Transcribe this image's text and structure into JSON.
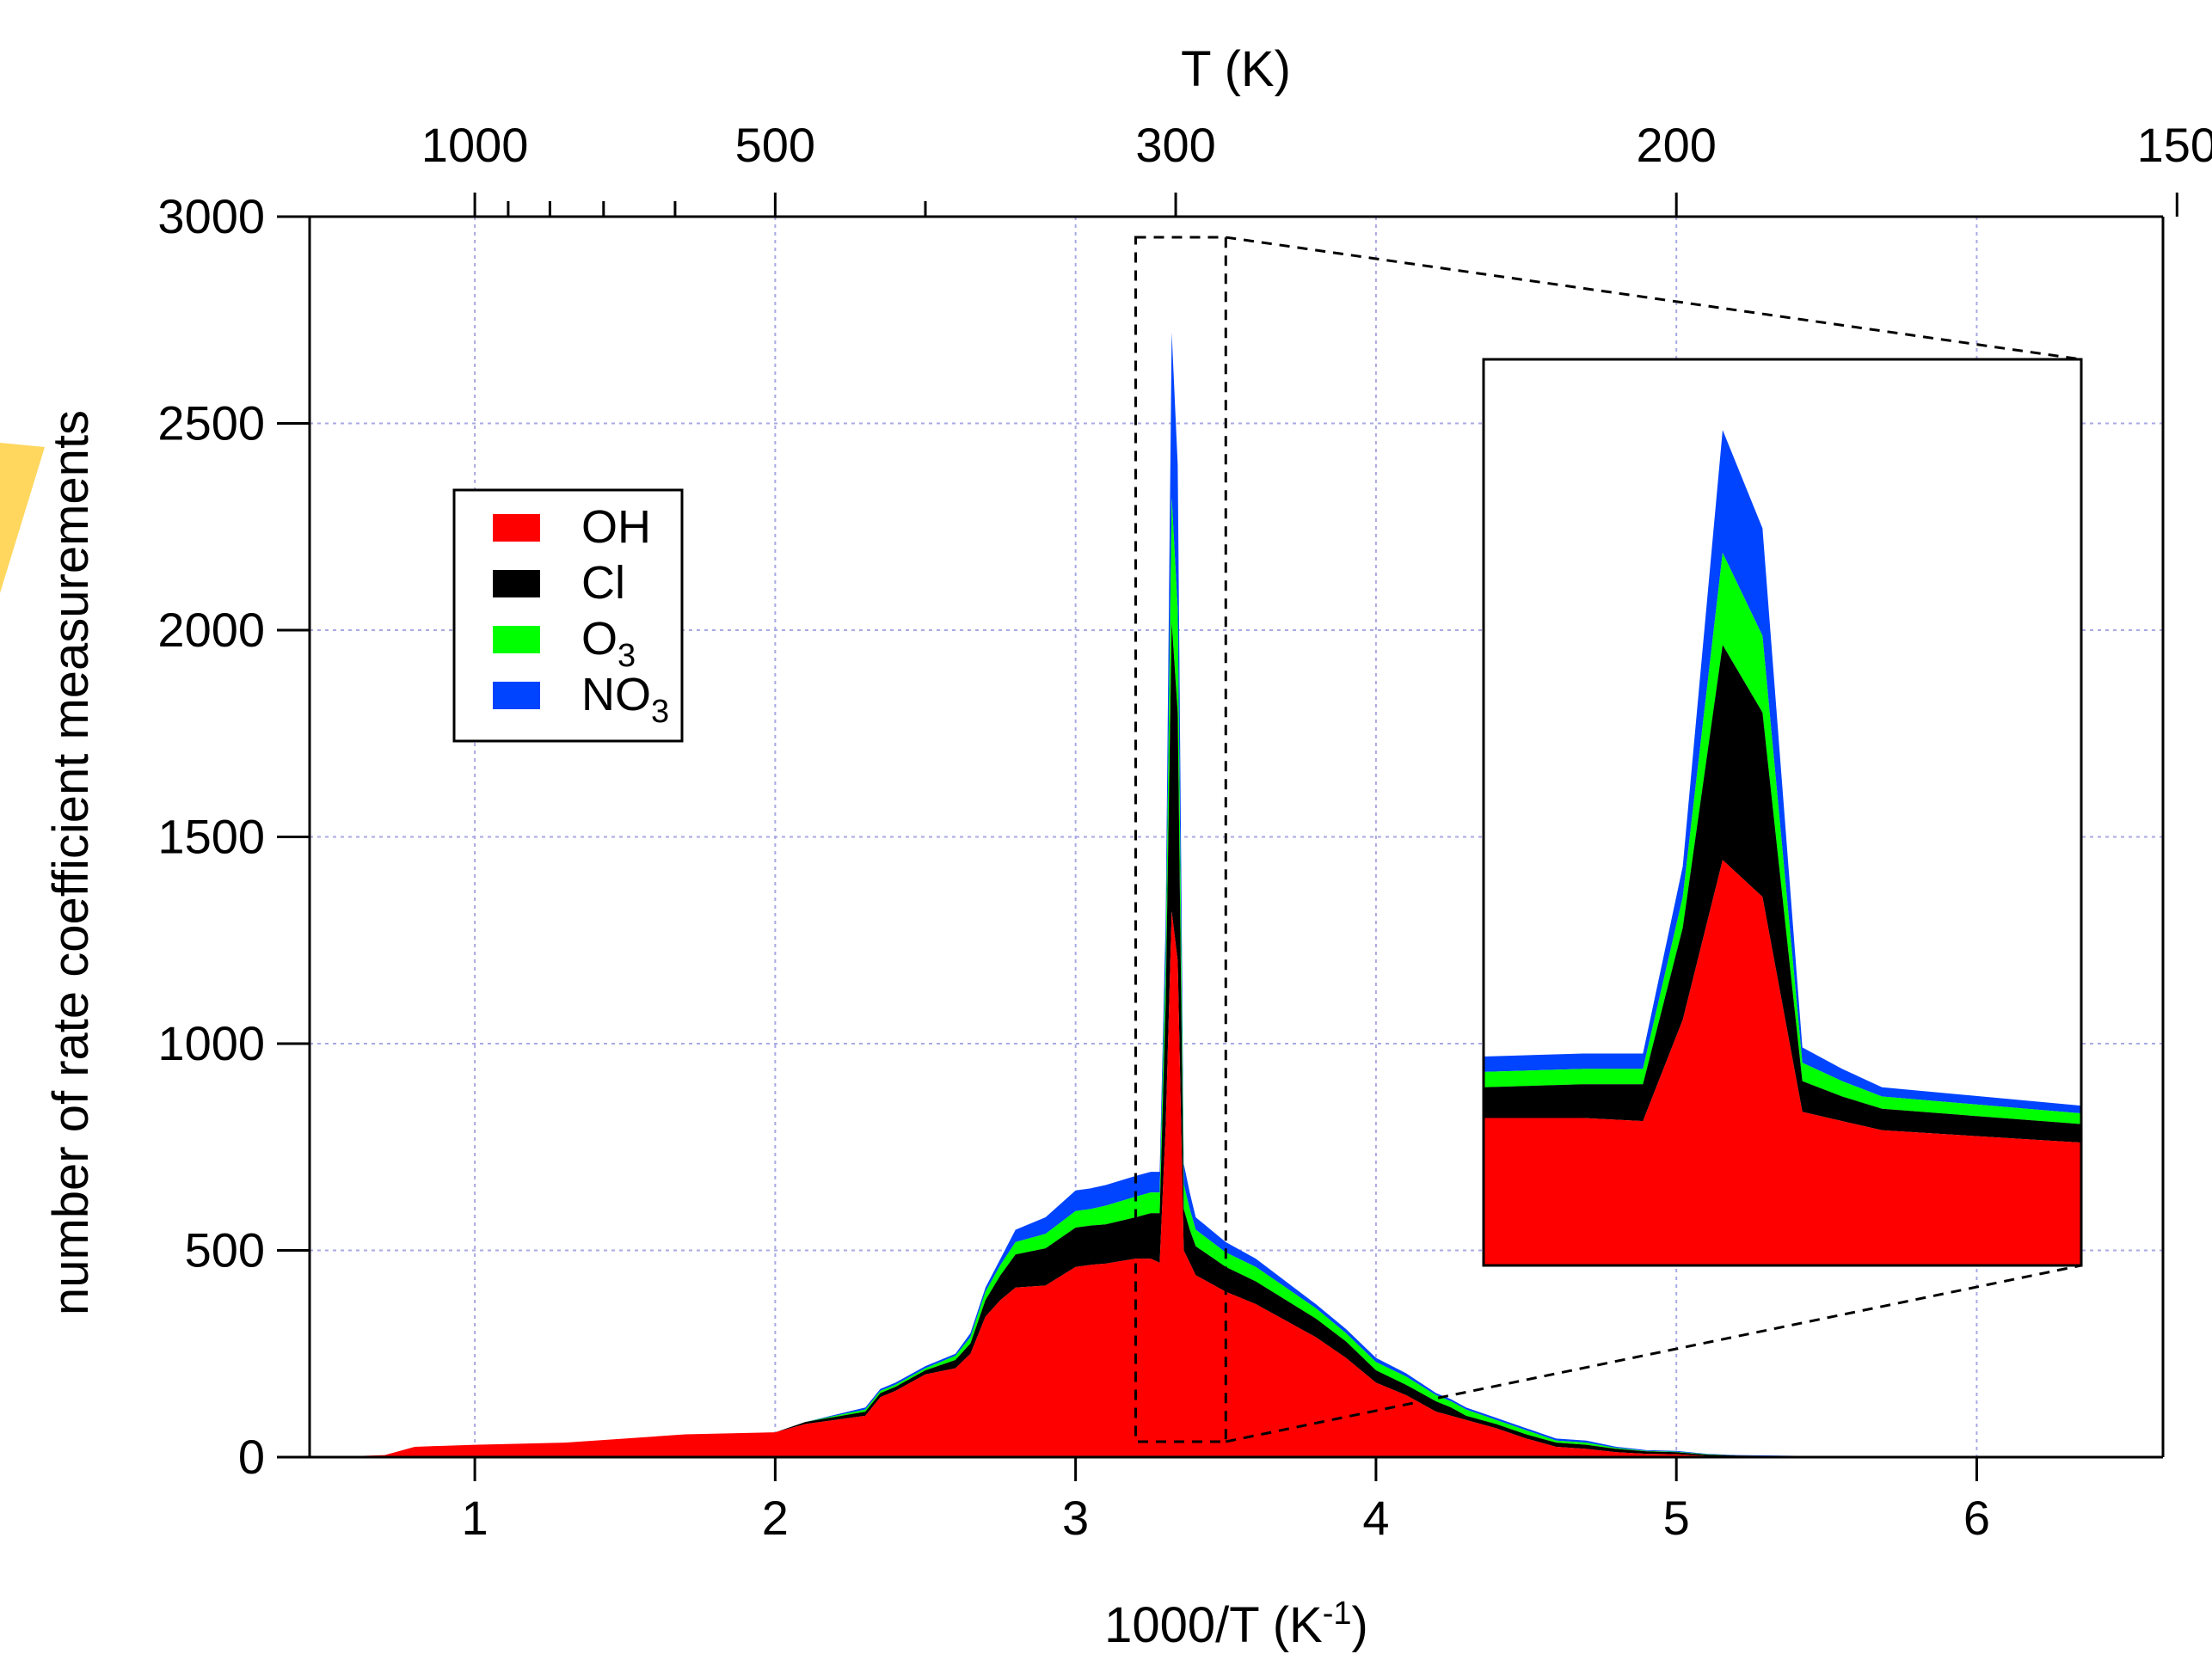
{
  "chart_data": {
    "type": "area",
    "stacked": true,
    "title": "",
    "xlabel": "1000/T (K",
    "xlabel_sup": "-1",
    "xlabel_close": ")",
    "ylabel": "number of rate coefficient measurements",
    "top_axis_label": "T (K)",
    "xlim": [
      0.45,
      6.62
    ],
    "ylim": [
      0,
      3000
    ],
    "x_ticks": [
      "1",
      "2",
      "3",
      "4",
      "5",
      "6"
    ],
    "y_ticks": [
      "0",
      "500",
      "1000",
      "1500",
      "2000",
      "2500",
      "3000"
    ],
    "top_ticks": [
      {
        "T": 1000,
        "label": "1000"
      },
      {
        "T": 500,
        "label": "500"
      },
      {
        "T": 300,
        "label": "300"
      },
      {
        "T": 200,
        "label": "200"
      },
      {
        "T": 150,
        "label": "150"
      }
    ],
    "top_minor_ticks_T": [
      900,
      800,
      700,
      600,
      400
    ],
    "grid": true,
    "legend": {
      "position": "upper-left",
      "entries": [
        {
          "name": "OH",
          "sub": "",
          "color": "#ff0000"
        },
        {
          "name": "Cl",
          "sub": "",
          "color": "#000000"
        },
        {
          "name": "O",
          "sub": "3",
          "color": "#00ff00"
        },
        {
          "name": "NO",
          "sub": "3",
          "color": "#0044ff"
        }
      ]
    },
    "x": [
      0.5,
      0.7,
      0.8,
      1.0,
      1.3,
      1.5,
      1.7,
      2.0,
      2.1,
      2.3,
      2.35,
      2.4,
      2.5,
      2.6,
      2.65,
      2.7,
      2.75,
      2.8,
      2.9,
      3.0,
      3.05,
      3.1,
      3.2,
      3.25,
      3.28,
      3.3,
      3.32,
      3.34,
      3.36,
      3.38,
      3.4,
      3.5,
      3.6,
      3.7,
      3.8,
      3.9,
      4.0,
      4.1,
      4.2,
      4.25,
      4.3,
      4.4,
      4.5,
      4.6,
      4.7,
      4.8,
      4.9,
      5.0,
      5.1,
      5.2,
      5.4,
      5.6,
      5.8,
      6.0,
      6.2,
      6.25
    ],
    "series": [
      {
        "name": "OH",
        "color": "#ff0000",
        "values": [
          0,
          5,
          25,
          30,
          35,
          45,
          55,
          60,
          80,
          100,
          145,
          160,
          200,
          215,
          250,
          340,
          380,
          410,
          415,
          460,
          465,
          468,
          480,
          480,
          470,
          800,
          1320,
          1200,
          500,
          470,
          440,
          400,
          370,
          330,
          290,
          240,
          180,
          150,
          110,
          100,
          90,
          70,
          45,
          25,
          20,
          12,
          8,
          7,
          3,
          2,
          1,
          1,
          0,
          0,
          0,
          0
        ]
      },
      {
        "name": "Cl",
        "color": "#000000",
        "values": [
          0,
          0,
          0,
          0,
          0,
          0,
          0,
          0,
          5,
          10,
          10,
          10,
          10,
          20,
          25,
          40,
          60,
          80,
          90,
          95,
          95,
          95,
          100,
          110,
          120,
          300,
          700,
          600,
          100,
          80,
          70,
          60,
          55,
          50,
          45,
          40,
          30,
          25,
          25,
          20,
          10,
          10,
          10,
          10,
          10,
          8,
          6,
          5,
          3,
          2,
          1,
          0,
          0,
          0,
          0,
          0
        ]
      },
      {
        "name": "O3",
        "color": "#00ff00",
        "values": [
          0,
          0,
          0,
          0,
          0,
          0,
          0,
          0,
          0,
          5,
          5,
          5,
          5,
          10,
          15,
          20,
          25,
          30,
          35,
          40,
          40,
          45,
          50,
          50,
          50,
          100,
          300,
          250,
          60,
          50,
          40,
          35,
          35,
          30,
          25,
          20,
          20,
          20,
          15,
          15,
          15,
          10,
          10,
          5,
          5,
          2,
          1,
          1,
          1,
          0,
          0,
          0,
          0,
          0,
          0,
          0
        ]
      },
      {
        "name": "NO3",
        "color": "#0044ff",
        "values": [
          0,
          0,
          0,
          0,
          0,
          0,
          0,
          0,
          0,
          5,
          5,
          5,
          5,
          5,
          10,
          10,
          15,
          30,
          40,
          50,
          50,
          50,
          50,
          50,
          50,
          100,
          400,
          350,
          50,
          40,
          30,
          25,
          20,
          15,
          10,
          10,
          10,
          8,
          5,
          5,
          5,
          5,
          5,
          5,
          5,
          3,
          2,
          2,
          1,
          1,
          1,
          0,
          0,
          0,
          0,
          0
        ]
      }
    ],
    "zoom": {
      "source_xlim": [
        3.2,
        3.5
      ],
      "source_ylim": [
        0,
        2950
      ]
    }
  }
}
